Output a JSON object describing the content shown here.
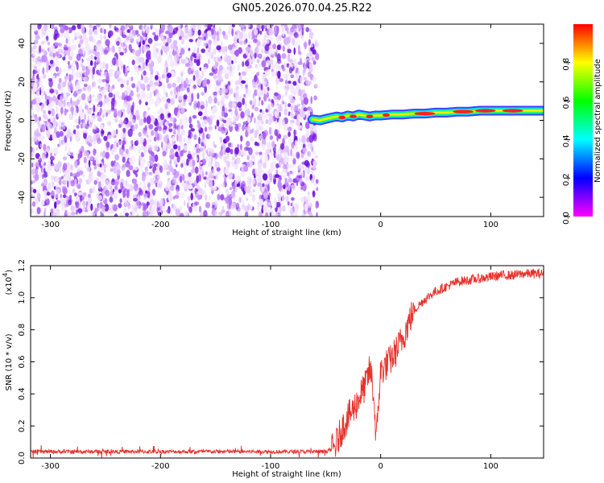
{
  "page_title": "GN05.2026.070.04.25.R22",
  "chart_data": [
    {
      "type": "heatmap",
      "title": "GN05.2026.070.04.25.R22",
      "xlabel": "Height of straight line (km)",
      "ylabel": "Frequency (Hz)",
      "xlim": [
        -318,
        148
      ],
      "ylim": [
        -50,
        50
      ],
      "x_ticks": [
        -300,
        -200,
        -100,
        0,
        100
      ],
      "y_ticks": [
        -40,
        -20,
        0,
        20,
        40
      ],
      "noise_region_x": [
        -318,
        -62
      ],
      "signal_track": {
        "x": [
          -62,
          -55,
          -48,
          -40,
          -35,
          -30,
          -25,
          -20,
          -15,
          -10,
          -5,
          0,
          10,
          20,
          30,
          40,
          50,
          60,
          70,
          80,
          90,
          100,
          110,
          120,
          130,
          140,
          148
        ],
        "freq_hz": [
          0.5,
          0.0,
          1.0,
          2.0,
          1.5,
          2.5,
          2.0,
          3.0,
          2.5,
          2.0,
          2.5,
          2.5,
          3.0,
          3.0,
          3.5,
          3.5,
          4.0,
          4.0,
          4.5,
          4.5,
          5.0,
          5.0,
          5.0,
          5.0,
          5.0,
          5.0,
          5.0
        ],
        "peak_x": [
          -35,
          -25,
          -10,
          5,
          40,
          75,
          95,
          120
        ]
      },
      "colorbar": {
        "label": "Normalized spectral amplitude",
        "range": [
          0,
          1
        ],
        "ticks": [
          "0.0",
          "0.2",
          "0.4",
          "0.6",
          "0.8"
        ],
        "colors": [
          "#ff00ff",
          "#0000ff",
          "#00ffff",
          "#00ff00",
          "#ffff00",
          "#ff0000"
        ]
      }
    },
    {
      "type": "line",
      "title": "",
      "xlabel": "Height of straight line (km)",
      "ylabel": "SNR (10 * v/v)",
      "y_exponent": "(x10",
      "y_exponent_power": "4",
      "xlim": [
        -318,
        148
      ],
      "ylim": [
        0,
        1.2
      ],
      "x_ticks": [
        -300,
        -200,
        -100,
        0,
        100
      ],
      "y_ticks": [
        "0.0",
        "0.2",
        "0.4",
        "0.6",
        "0.8",
        "1.0",
        "1.2"
      ],
      "line_color": "#e8302a",
      "series": [
        {
          "name": "SNR",
          "x": [
            -318,
            -250,
            -150,
            -50,
            -42,
            -38,
            -34,
            -30,
            -26,
            -22,
            -18,
            -14,
            -10,
            -8,
            -6,
            -4,
            -2,
            0,
            5,
            10,
            15,
            20,
            25,
            30,
            40,
            50,
            60,
            70,
            80,
            90,
            100,
            110,
            120,
            130,
            140,
            148
          ],
          "values": [
            0.04,
            0.04,
            0.04,
            0.04,
            0.06,
            0.13,
            0.2,
            0.25,
            0.29,
            0.34,
            0.4,
            0.45,
            0.55,
            0.5,
            0.35,
            0.1,
            0.35,
            0.54,
            0.58,
            0.62,
            0.68,
            0.75,
            0.84,
            0.92,
            0.99,
            1.04,
            1.07,
            1.1,
            1.11,
            1.12,
            1.13,
            1.14,
            1.14,
            1.15,
            1.15,
            1.15
          ]
        }
      ]
    }
  ]
}
